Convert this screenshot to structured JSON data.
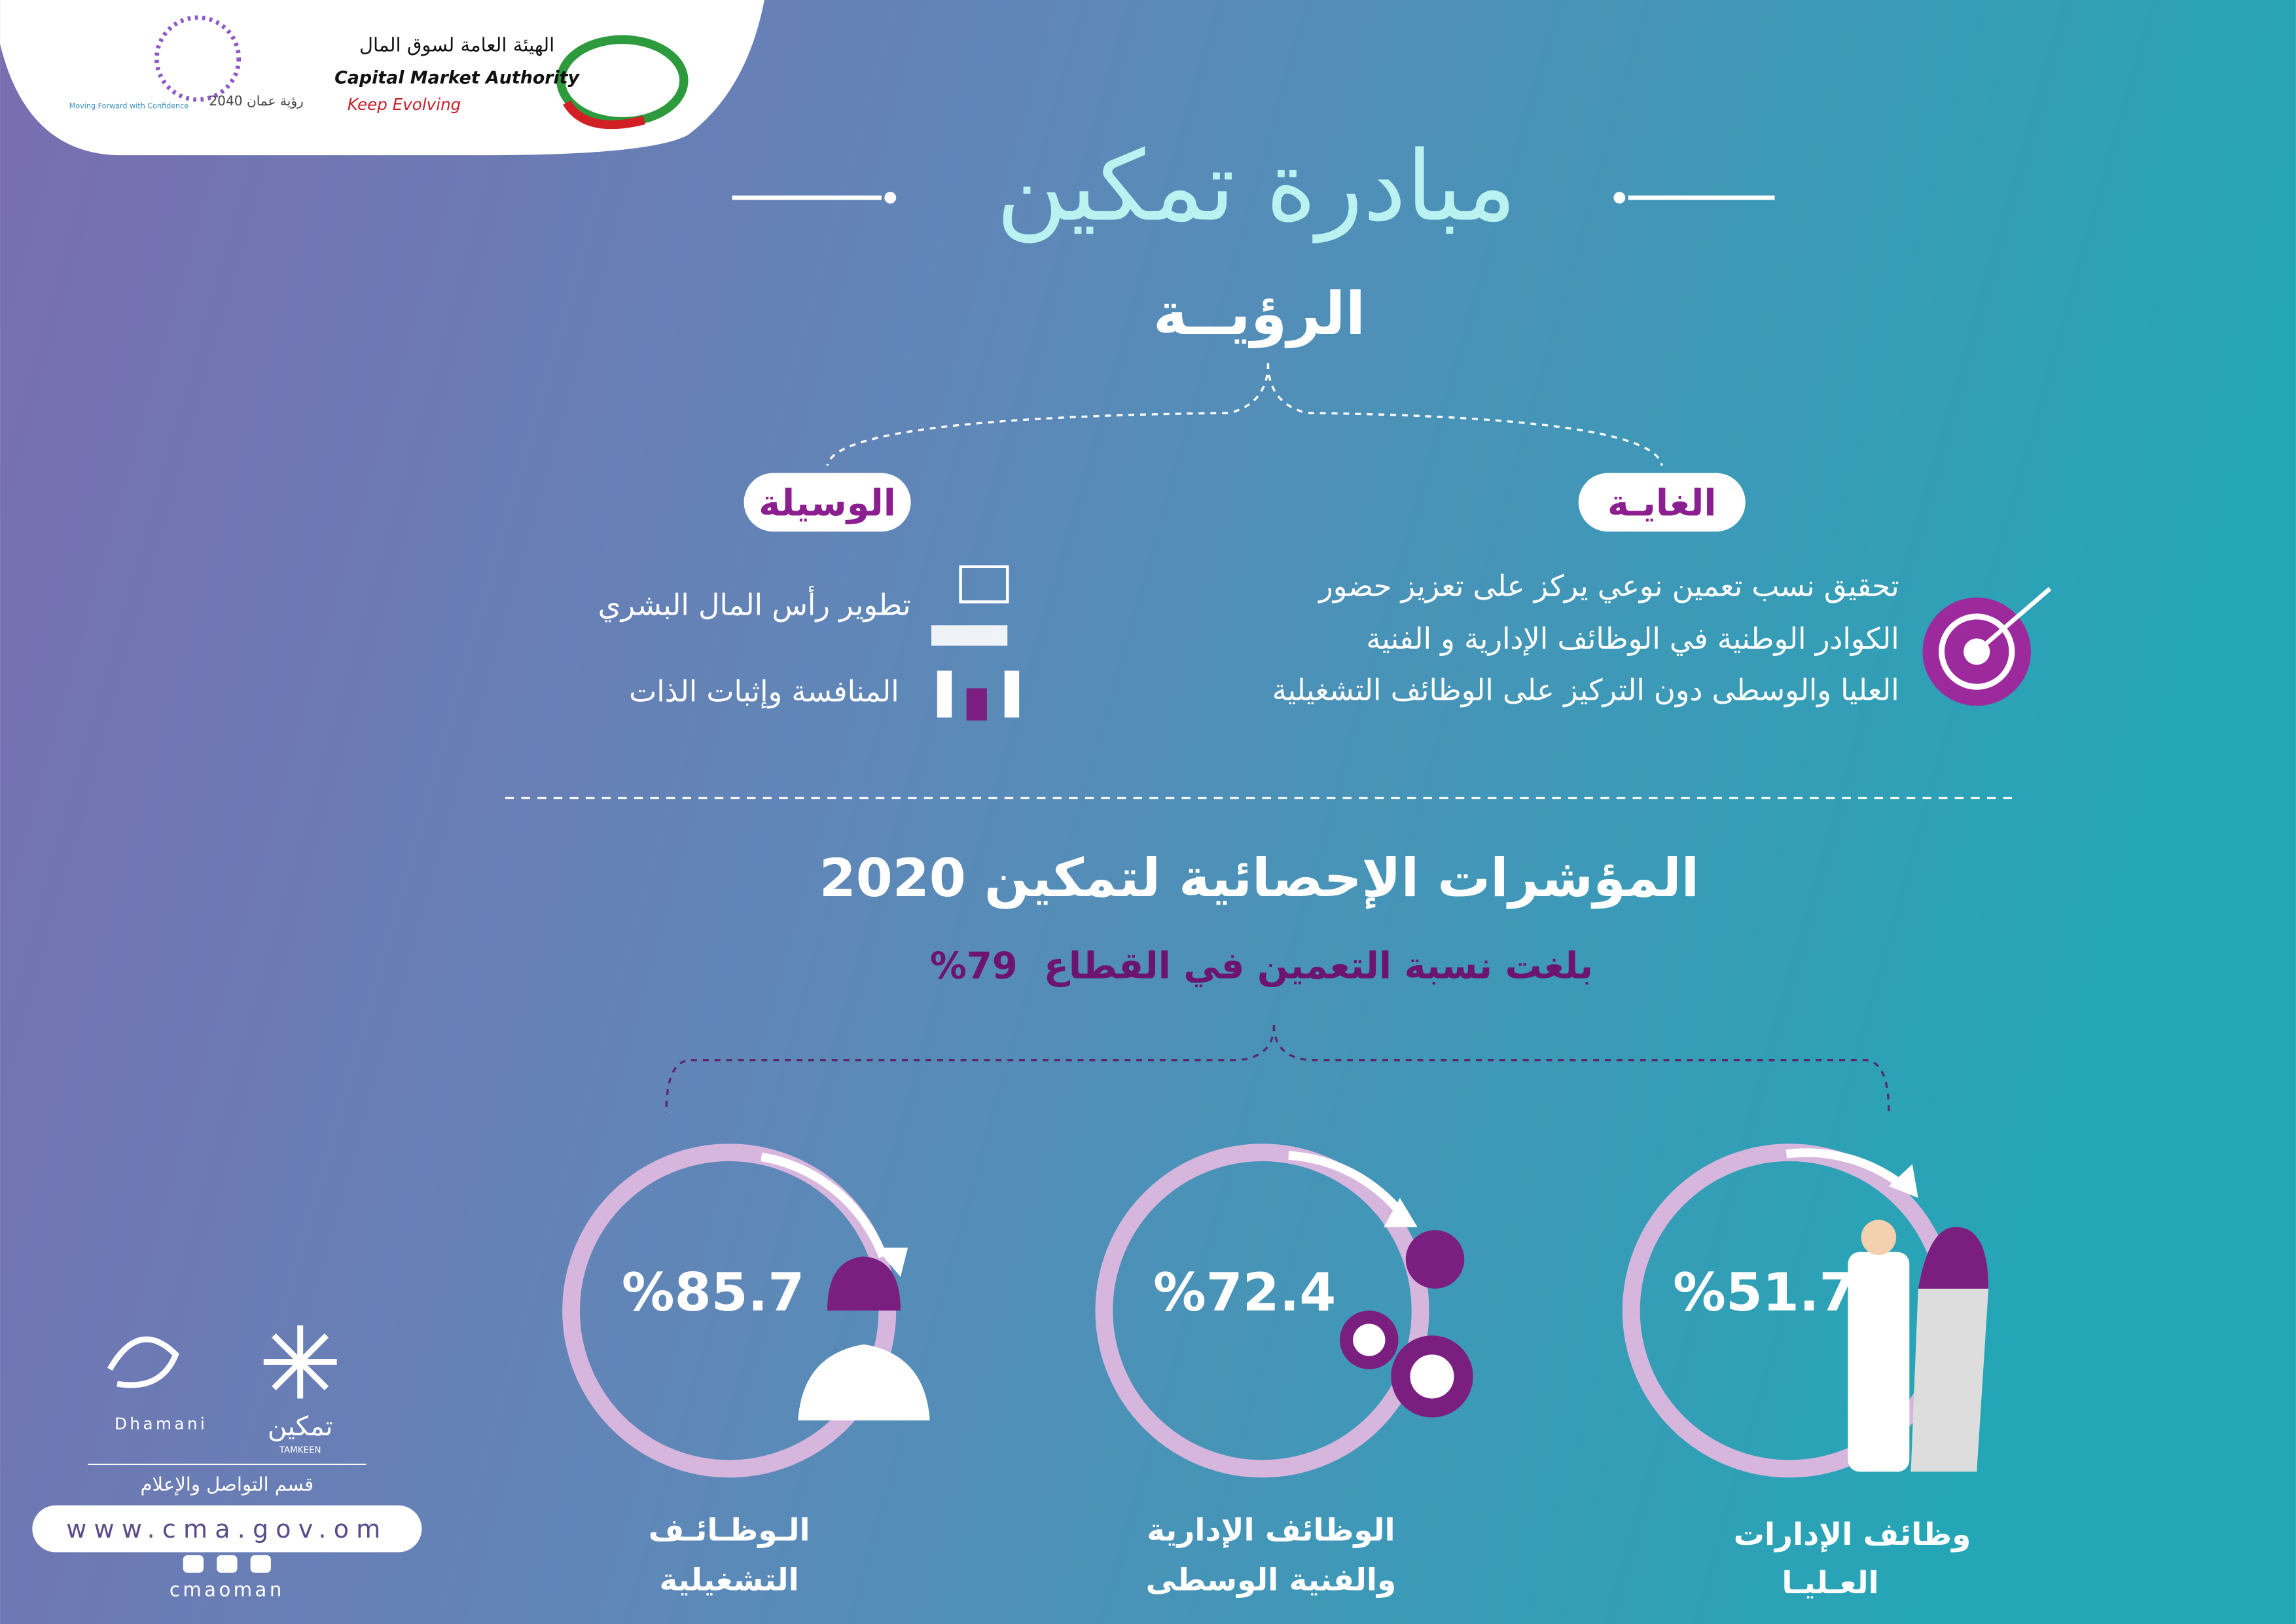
{
  "header": {
    "cma_name_ar": "الهيئة العامة لسوق المال",
    "cma_name_en": "Capital Market Authority",
    "cma_slogan": "Keep Evolving",
    "vision_name": "رؤية عمان 2040",
    "vision_slogan": "Moving Forward with Confidence"
  },
  "title": "مبادرة تمكين",
  "vision": {
    "heading": "الرؤيــة",
    "goal": {
      "label": "الغايـة",
      "lines": [
        "تحقيق نسب تعمين نوعي يركز على تعزيز حضور",
        "الكوادر الوطنية في الوظائف الإدارية و الفنية",
        "العليا والوسطى دون التركيز على الوظائف التشغيلية"
      ]
    },
    "means": {
      "label": "الوسيلة",
      "items": [
        "تطوير رأس المال البشري",
        "المنافسة وإثبات الذات"
      ]
    }
  },
  "stats": {
    "heading": "المؤشرات الإحصائية لتمكين 2020",
    "summary": "بلغت نسبة التعمين في القطاع",
    "summary_value": "%79",
    "items": [
      {
        "value": "%85.7",
        "label": [
          "الـوظـائـف",
          "التشغيلية"
        ]
      },
      {
        "value": "%72.4",
        "label": [
          "الوظائف الإدارية",
          "والفنية الوسطى"
        ]
      },
      {
        "value": "%51.7",
        "label": [
          "وظائف الإدارات",
          "العـليـا"
        ]
      }
    ]
  },
  "footer": {
    "dhamani": "Dhamani",
    "tamkeen_ar": "تمكين",
    "tamkeen_en": "TAMKEEN",
    "department": "قسم التواصل والإعلام",
    "website": "www.cma.gov.om",
    "handle": "cmaoman"
  }
}
